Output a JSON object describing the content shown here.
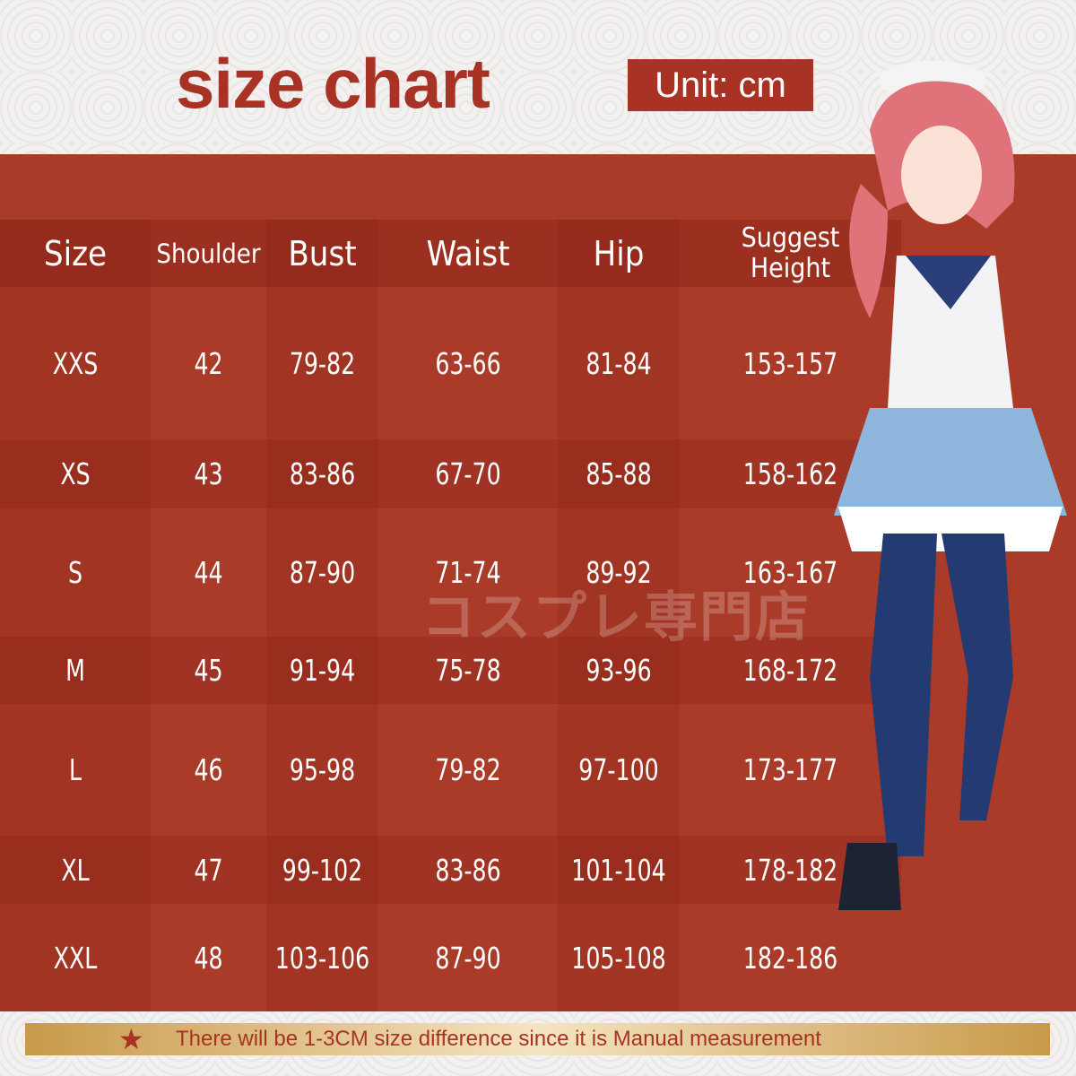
{
  "title": "size chart",
  "unit_label": "Unit: cm",
  "watermark": "コスプレ専門店",
  "colors": {
    "brand_red": "#a83324",
    "table_bg": "#aa3b29",
    "footer_gold": "#c89a4a"
  },
  "table": {
    "headers": [
      "Size",
      "Shoulder",
      "Bust",
      "Waist",
      "Hip",
      "Suggest Height"
    ],
    "rows": [
      [
        "XXS",
        "42",
        "79-82",
        "63-66",
        "81-84",
        "153-157"
      ],
      [
        "XS",
        "43",
        "83-86",
        "67-70",
        "85-88",
        "158-162"
      ],
      [
        "S",
        "44",
        "87-90",
        "71-74",
        "89-92",
        "163-167"
      ],
      [
        "M",
        "45",
        "91-94",
        "75-78",
        "93-96",
        "168-172"
      ],
      [
        "L",
        "46",
        "95-98",
        "79-82",
        "97-100",
        "173-177"
      ],
      [
        "XL",
        "47",
        "99-102",
        "83-86",
        "101-104",
        "178-182"
      ],
      [
        "XXL",
        "48",
        "103-106",
        "87-90",
        "105-108",
        "182-186"
      ]
    ]
  },
  "footer": {
    "icon": "star-icon",
    "note": "There will be 1-3CM size difference since it is Manual measurement"
  }
}
